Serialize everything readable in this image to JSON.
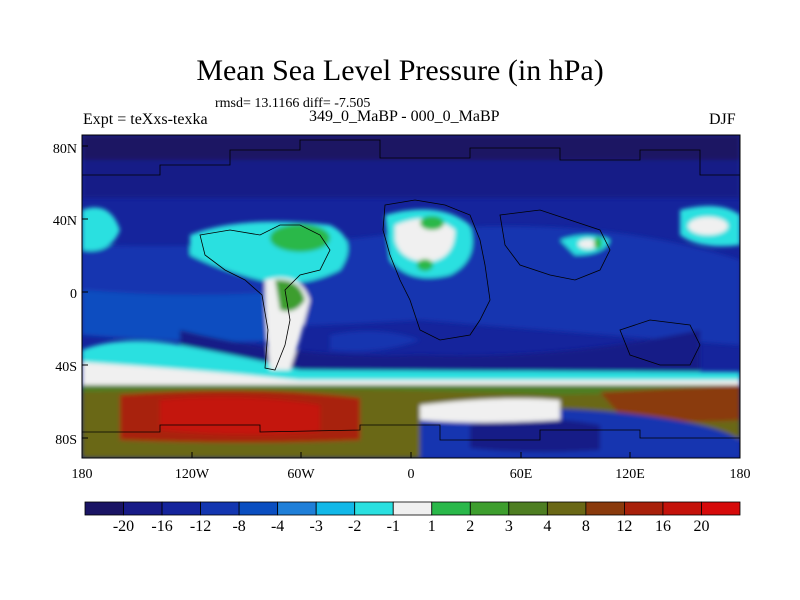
{
  "title": "Mean Sea Level Pressure (in hPa)",
  "stats": "rmsd= 13.1166 diff= -7.505",
  "experiment": "Expt = teXxs-texka",
  "period": "349_0_MaBP - 000_0_MaBP",
  "season": "DJF",
  "lat_ticks": [
    "80N",
    "40N",
    "0",
    "40S",
    "80S"
  ],
  "lon_ticks": [
    "180",
    "120W",
    "60W",
    "0",
    "60E",
    "120E",
    "180"
  ],
  "colorbar": {
    "labels": [
      "-20",
      "-16",
      "-12",
      "-8",
      "-4",
      "-3",
      "-2",
      "-1",
      "1",
      "2",
      "3",
      "4",
      "8",
      "12",
      "16",
      "20"
    ],
    "colors": [
      "#1a1464",
      "#181b87",
      "#15249c",
      "#1336b0",
      "#0a4ec0",
      "#1f7fd8",
      "#12b8e8",
      "#2ae0e0",
      "#f0f0f0",
      "#2ab84a",
      "#3e9e2e",
      "#4e7e22",
      "#6a6816",
      "#8a3a0c",
      "#a8200a",
      "#c4120a",
      "#d60a0a"
    ]
  }
}
